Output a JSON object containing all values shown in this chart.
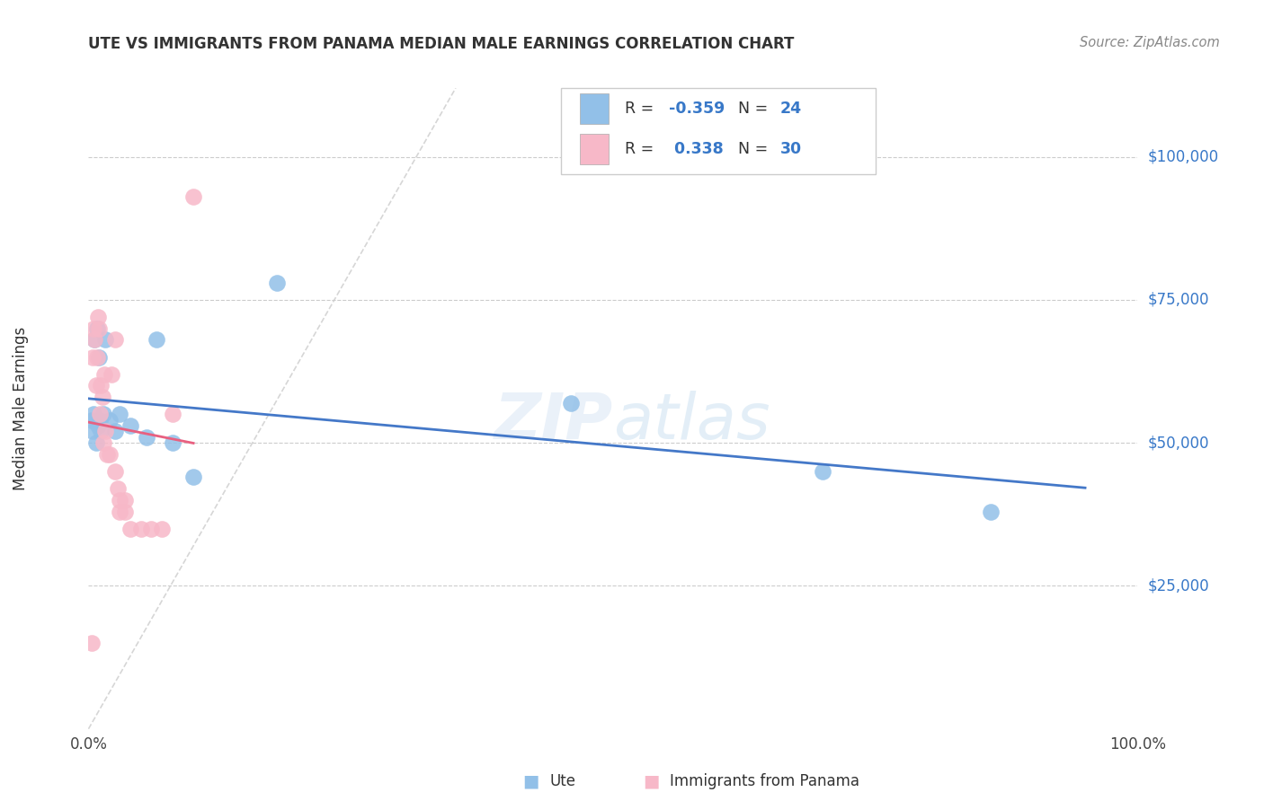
{
  "title": "UTE VS IMMIGRANTS FROM PANAMA MEDIAN MALE EARNINGS CORRELATION CHART",
  "source": "Source: ZipAtlas.com",
  "ylabel": "Median Male Earnings",
  "ytick_labels": [
    "$25,000",
    "$50,000",
    "$75,000",
    "$100,000"
  ],
  "ytick_values": [
    25000,
    50000,
    75000,
    100000
  ],
  "ylim": [
    0,
    112000
  ],
  "xlim": [
    0.0,
    1.0
  ],
  "legend_ute_R": "-0.359",
  "legend_ute_N": "24",
  "legend_panama_R": "0.338",
  "legend_panama_N": "30",
  "ute_color": "#92c0e8",
  "panama_color": "#f7b8c8",
  "ute_line_color": "#4478c8",
  "panama_line_color": "#e86080",
  "diagonal_color": "#cccccc",
  "background_color": "#ffffff",
  "ute_x": [
    0.003,
    0.004,
    0.005,
    0.006,
    0.007,
    0.008,
    0.009,
    0.01,
    0.011,
    0.012,
    0.014,
    0.016,
    0.02,
    0.025,
    0.03,
    0.04,
    0.055,
    0.065,
    0.08,
    0.1,
    0.18,
    0.46,
    0.7,
    0.86
  ],
  "ute_y": [
    54000,
    52000,
    55000,
    68000,
    50000,
    70000,
    53000,
    65000,
    54000,
    52000,
    55000,
    68000,
    54000,
    52000,
    55000,
    53000,
    51000,
    68000,
    50000,
    44000,
    78000,
    57000,
    45000,
    38000
  ],
  "panama_x": [
    0.003,
    0.004,
    0.005,
    0.006,
    0.007,
    0.008,
    0.009,
    0.01,
    0.011,
    0.012,
    0.013,
    0.014,
    0.015,
    0.016,
    0.018,
    0.02,
    0.022,
    0.025,
    0.028,
    0.03,
    0.03,
    0.035,
    0.035,
    0.04,
    0.05,
    0.06,
    0.07,
    0.08,
    0.1,
    0.025
  ],
  "panama_y": [
    15000,
    65000,
    70000,
    68000,
    60000,
    65000,
    72000,
    70000,
    55000,
    60000,
    58000,
    50000,
    62000,
    52000,
    48000,
    48000,
    62000,
    45000,
    42000,
    38000,
    40000,
    38000,
    40000,
    35000,
    35000,
    35000,
    35000,
    55000,
    93000,
    68000
  ]
}
